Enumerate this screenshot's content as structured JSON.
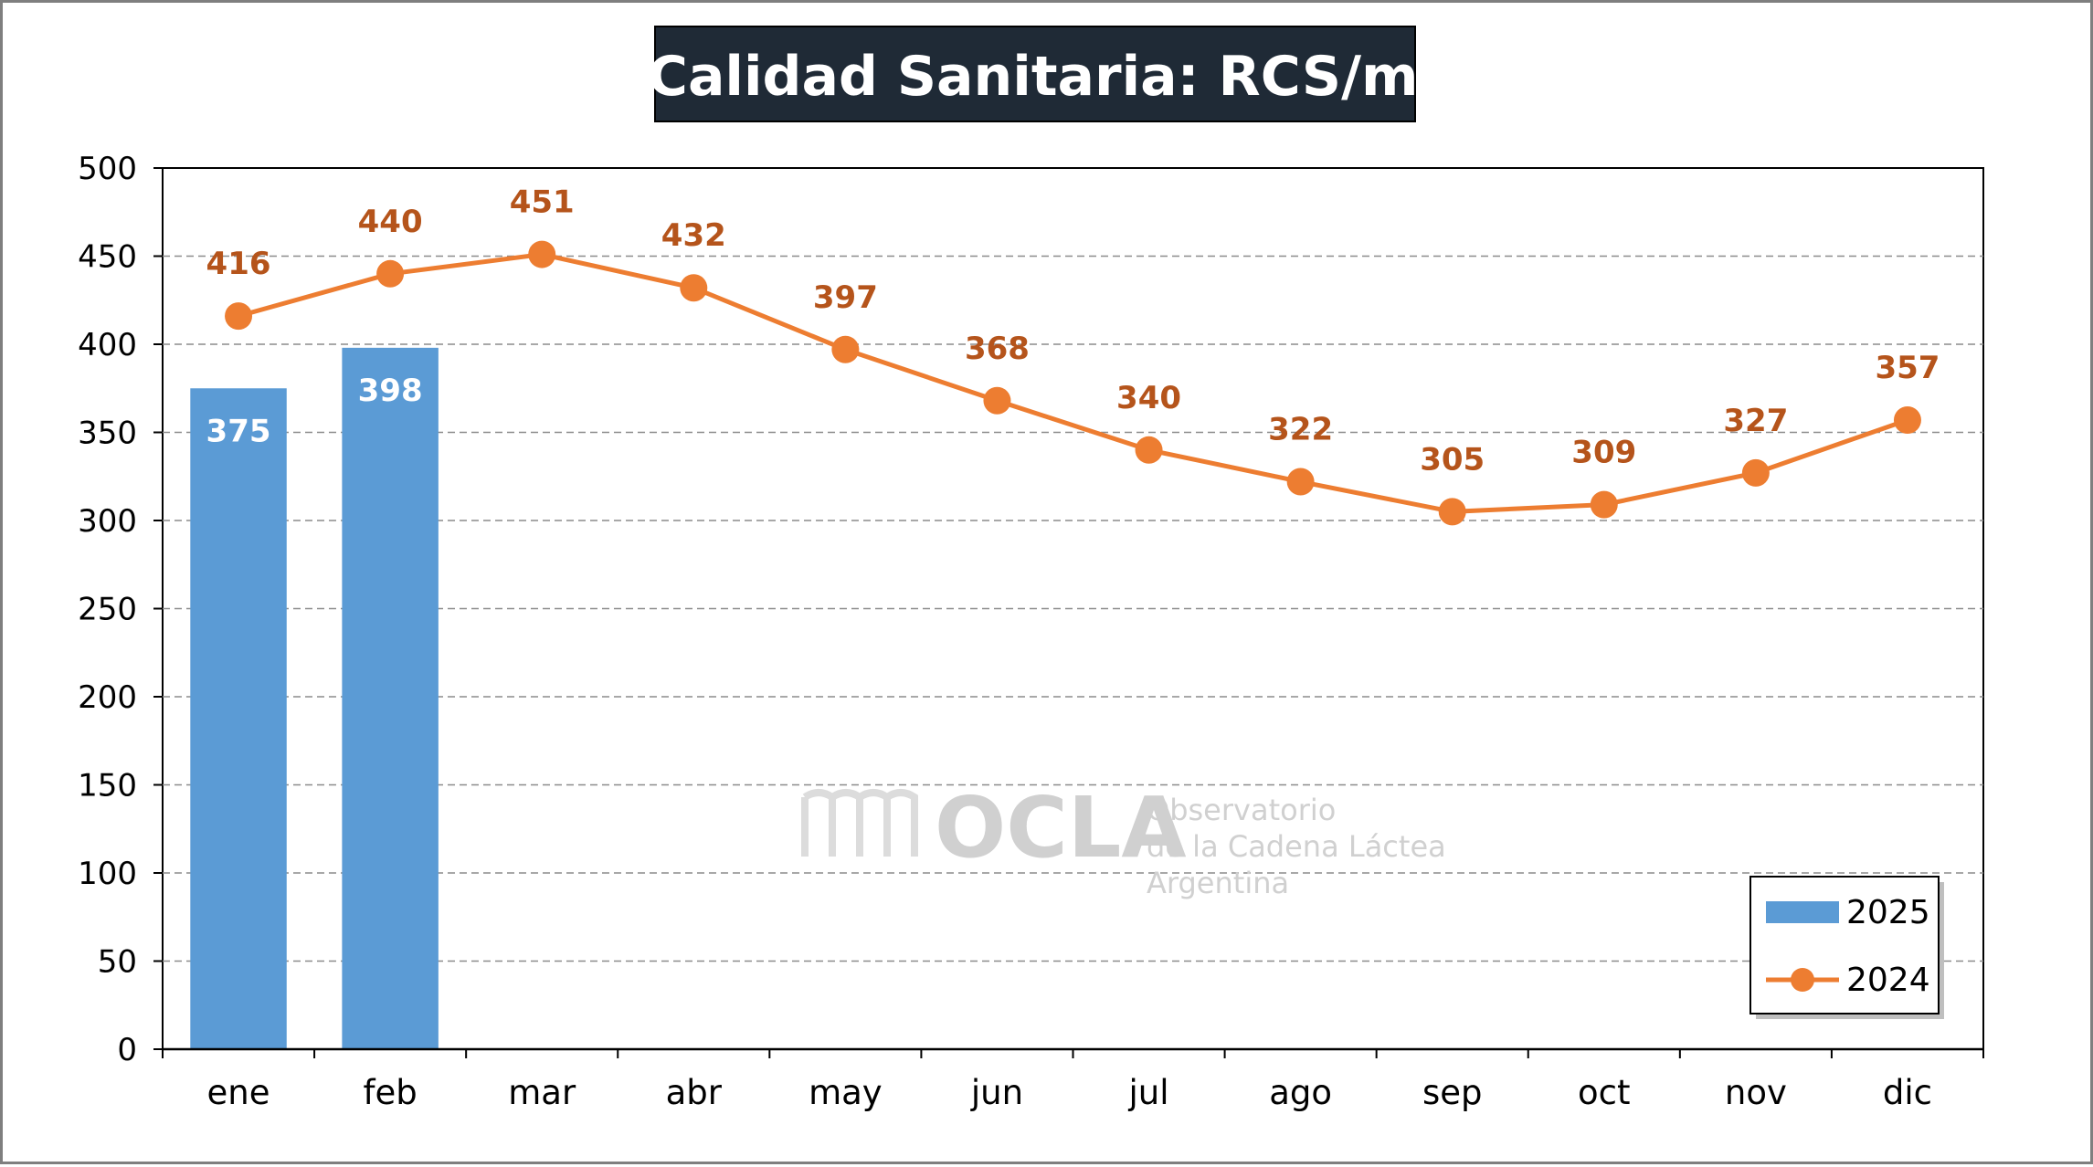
{
  "chart_data": {
    "type": "bar+line",
    "title": "Calidad Sanitaria: RCS/ml",
    "categories": [
      "ene",
      "feb",
      "mar",
      "abr",
      "may",
      "jun",
      "jul",
      "ago",
      "sep",
      "oct",
      "nov",
      "dic"
    ],
    "series": [
      {
        "name": "2025",
        "type": "bar",
        "color": "#5b9bd5",
        "values": [
          375,
          398,
          null,
          null,
          null,
          null,
          null,
          null,
          null,
          null,
          null,
          null
        ]
      },
      {
        "name": "2024",
        "type": "line",
        "color": "#ed7d31",
        "label_color": "#b5541b",
        "values": [
          416,
          440,
          451,
          432,
          397,
          368,
          340,
          322,
          305,
          309,
          327,
          357
        ]
      }
    ],
    "yticks": [
      "0",
      "50",
      "100",
      "150",
      "200",
      "250",
      "300",
      "350",
      "400",
      "450",
      "500"
    ],
    "ylim": [
      0,
      500
    ],
    "ystep": 50,
    "grid": "horizontal-dashed",
    "legend_position": "bottom-right",
    "title_bg": "#1f2a36"
  },
  "watermark": {
    "brand": "OCLA",
    "line1": "Observatorio",
    "line2": "de la Cadena Láctea",
    "line3": "Argentina"
  }
}
